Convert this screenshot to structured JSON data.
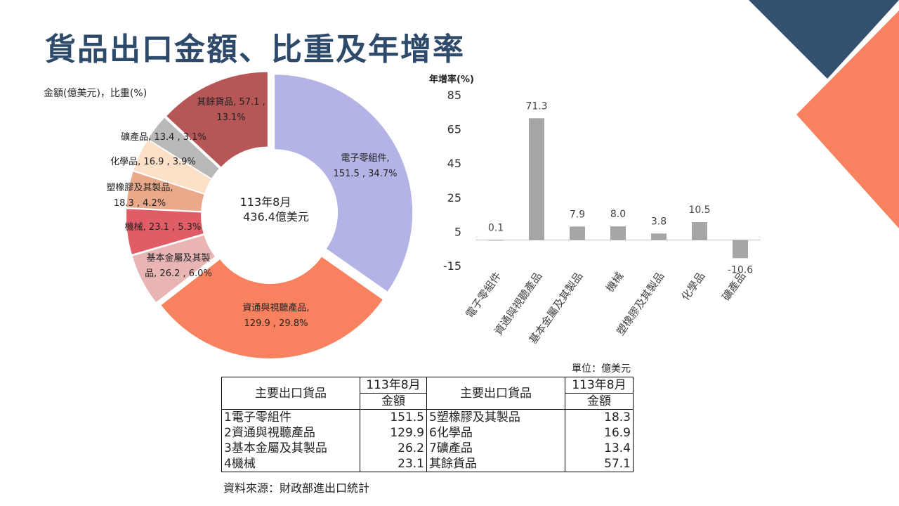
{
  "title": "貨品出口金額、比重及年增率",
  "colors": {
    "title": "#2e4a6b",
    "navy": "#34506f",
    "coral": "#f8825f",
    "bar": "#a6a6a6"
  },
  "chart_data": [
    {
      "type": "donut",
      "label_note": "金額(億美元)，比重(%)",
      "center_line1": "113年8月",
      "center_line2": "436.4億美元",
      "slices": [
        {
          "name": "電子零組件",
          "value": 151.5,
          "share": 34.7,
          "label1": "電子零組件,",
          "label2": "151.5 , 34.7%",
          "color": "#b3b3e6"
        },
        {
          "name": "資通與視聽產品",
          "value": 129.9,
          "share": 29.8,
          "label1": "資通與視聽產品,",
          "label2": "129.9 , 29.8%",
          "color": "#f8825f"
        },
        {
          "name": "基本金屬及其製品",
          "value": 26.2,
          "share": 6.0,
          "label1": "基本金屬及其製",
          "label2": "品, 26.2 , 6.0%",
          "color": "#e8b4b4"
        },
        {
          "name": "機械",
          "value": 23.1,
          "share": 5.3,
          "label1": "機械, 23.1 , 5.3%",
          "label2": "",
          "color": "#e05c66"
        },
        {
          "name": "塑橡膠及其製品",
          "value": 18.3,
          "share": 4.2,
          "label1": "塑橡膠及其製品,",
          "label2": "18.3 , 4.2%",
          "color": "#e9a98a"
        },
        {
          "name": "化學品",
          "value": 16.9,
          "share": 3.9,
          "label1": "化學品, 16.9 , 3.9%",
          "label2": "",
          "color": "#fde0c8"
        },
        {
          "name": "礦產品",
          "value": 13.4,
          "share": 3.1,
          "label1": "礦產品, 13.4 , 3.1%",
          "label2": "",
          "color": "#b9b9b9"
        },
        {
          "name": "其餘貨品",
          "value": 57.1,
          "share": 13.1,
          "label1": "其餘貨品, 57.1 ,",
          "label2": "13.1%",
          "color": "#b65657"
        }
      ]
    },
    {
      "type": "bar",
      "ylabel": "年增率(%)",
      "ylim": [
        -15,
        85
      ],
      "yticks": [
        85,
        65,
        45,
        25,
        5,
        -15
      ],
      "categories": [
        "電子零組件",
        "資通與視聽產品",
        "基本金屬及其製品",
        "機械",
        "塑橡膠及其製品",
        "化學品",
        "礦產品"
      ],
      "values": [
        0.1,
        71.3,
        7.9,
        8.0,
        3.8,
        10.5,
        -10.6
      ],
      "value_labels": [
        "0.1",
        "71.3",
        "7.9",
        "8.0",
        "3.8",
        "10.5",
        "-10.6"
      ]
    }
  ],
  "table": {
    "unit": "單位：億美元",
    "header_item": "主要出口貨品",
    "header_period": "113年8月",
    "header_amount": "金額",
    "left": [
      {
        "item": "1電子零組件",
        "value": "151.5"
      },
      {
        "item": "2資通與視聽產品",
        "value": "129.9"
      },
      {
        "item": "3基本金屬及其製品",
        "value": "26.2"
      },
      {
        "item": "4機械",
        "value": "23.1"
      }
    ],
    "right": [
      {
        "item": "5塑橡膠及其製品",
        "value": "18.3"
      },
      {
        "item": "6化學品",
        "value": "16.9"
      },
      {
        "item": "7礦產品",
        "value": "13.4"
      },
      {
        "item": "其餘貨品",
        "value": "57.1"
      }
    ],
    "source": "資料來源：財政部進出口統計"
  }
}
